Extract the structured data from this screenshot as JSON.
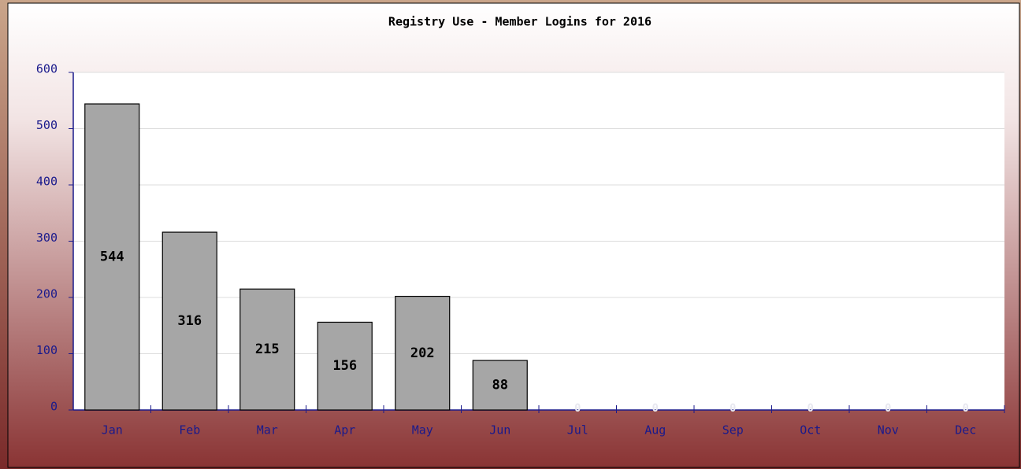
{
  "chart_data": {
    "type": "bar",
    "title": "Registry Use - Member Logins for 2016",
    "categories": [
      "Jan",
      "Feb",
      "Mar",
      "Apr",
      "May",
      "Jun",
      "Jul",
      "Aug",
      "Sep",
      "Oct",
      "Nov",
      "Dec"
    ],
    "values": [
      544,
      316,
      215,
      156,
      202,
      88,
      0,
      0,
      0,
      0,
      0,
      0
    ],
    "color": "#a6a6a6",
    "ylim": [
      0,
      600
    ],
    "yticks": [
      0,
      100,
      200,
      300,
      400,
      500,
      600
    ],
    "grid": true
  }
}
